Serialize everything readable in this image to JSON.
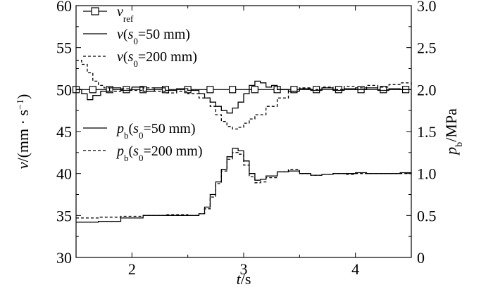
{
  "chart_data": {
    "type": "line",
    "xlabel": {
      "var": "t",
      "unit": "/s"
    },
    "ylabel_left": {
      "var": "v",
      "unit": "/(mm · s",
      "sup": "−1",
      "close": ")"
    },
    "ylabel_right": {
      "var": "p",
      "sub": "b",
      "unit": "/MPa"
    },
    "xlim": [
      1.5,
      4.5
    ],
    "ylim_left": [
      30,
      60
    ],
    "ylim_right": [
      0,
      3.0
    ],
    "x_ticks": [
      "2",
      "3",
      "4"
    ],
    "y_left_ticks": [
      "30",
      "35",
      "40",
      "45",
      "50",
      "55",
      "60"
    ],
    "y_right_ticks": [
      "0",
      "0.5",
      "1.0",
      "1.5",
      "2.0",
      "2.5",
      "3.0"
    ],
    "legend": [
      {
        "var": "v",
        "sub": "ref",
        "rest": "",
        "style": "square-marker"
      },
      {
        "var": "v",
        "sub": "",
        "rest": "(s",
        "sub2": "0",
        "tail": "=50 mm)",
        "style": "solid"
      },
      {
        "var": "v",
        "sub": "",
        "rest": "(s",
        "sub2": "0",
        "tail": "=200 mm)",
        "style": "dashed"
      },
      {
        "var": "p",
        "sub": "b",
        "rest": "(s",
        "sub2": "0",
        "tail": "=50 mm)",
        "style": "solid"
      },
      {
        "var": "p",
        "sub": "b",
        "rest": "(s",
        "sub2": "0",
        "tail": "=200 mm)",
        "style": "dashed"
      }
    ],
    "series": [
      {
        "name": "v_ref",
        "axis": "left",
        "style": "square-marker",
        "x": [
          1.5,
          1.65,
          1.8,
          1.95,
          2.1,
          2.3,
          2.5,
          2.7,
          2.9,
          3.1,
          3.3,
          3.45,
          3.65,
          3.85,
          4.05,
          4.25,
          4.45
        ],
        "y": [
          50,
          50,
          50,
          50,
          50,
          50,
          50,
          50,
          50,
          50,
          50,
          50,
          50,
          50,
          50,
          50,
          50
        ]
      },
      {
        "name": "v(s0=50 mm)",
        "axis": "left",
        "style": "solid",
        "x": [
          1.5,
          1.55,
          1.6,
          1.65,
          1.72,
          1.8,
          1.9,
          2.0,
          2.1,
          2.2,
          2.3,
          2.4,
          2.5,
          2.6,
          2.65,
          2.7,
          2.75,
          2.8,
          2.85,
          2.9,
          2.95,
          3.0,
          3.05,
          3.1,
          3.15,
          3.2,
          3.25,
          3.3,
          3.4,
          3.5,
          3.6,
          3.7,
          3.8,
          3.9,
          4.0,
          4.1,
          4.2,
          4.3,
          4.4,
          4.5
        ],
        "y": [
          50,
          49.5,
          48.8,
          49.3,
          49.8,
          50.2,
          49.9,
          50.3,
          49.8,
          50.2,
          49.9,
          50.1,
          49.9,
          49.5,
          49.0,
          48.5,
          48.0,
          47.5,
          47.2,
          47.8,
          48.5,
          49.5,
          50.5,
          51.0,
          50.8,
          50.3,
          50.5,
          50.0,
          49.8,
          50.1,
          49.9,
          50.2,
          49.9,
          50.1,
          50.0,
          50.2,
          49.9,
          50.1,
          50.0,
          50.0
        ]
      },
      {
        "name": "v(s0=200 mm)",
        "axis": "left",
        "style": "dashed",
        "x": [
          1.5,
          1.55,
          1.6,
          1.65,
          1.7,
          1.75,
          1.8,
          1.9,
          2.0,
          2.1,
          2.2,
          2.3,
          2.4,
          2.5,
          2.6,
          2.7,
          2.75,
          2.8,
          2.85,
          2.9,
          2.95,
          3.0,
          3.05,
          3.1,
          3.2,
          3.3,
          3.4,
          3.5,
          3.6,
          3.7,
          3.8,
          3.9,
          4.0,
          4.1,
          4.2,
          4.3,
          4.4,
          4.5
        ],
        "y": [
          53.5,
          53.0,
          52.0,
          51.0,
          50.5,
          50.2,
          49.8,
          50.1,
          49.9,
          50.2,
          49.8,
          49.6,
          49.8,
          49.5,
          49.0,
          48.0,
          47.0,
          46.2,
          45.6,
          45.3,
          45.5,
          46.0,
          46.5,
          47.0,
          48.0,
          49.0,
          49.8,
          50.2,
          50.0,
          50.3,
          50.0,
          50.4,
          50.2,
          50.5,
          50.3,
          50.6,
          50.8,
          50.5
        ]
      },
      {
        "name": "pb(s0=50 mm)",
        "axis": "right",
        "style": "solid",
        "x": [
          1.5,
          1.7,
          1.9,
          2.1,
          2.3,
          2.5,
          2.6,
          2.65,
          2.7,
          2.75,
          2.8,
          2.85,
          2.9,
          2.95,
          3.0,
          3.05,
          3.1,
          3.15,
          3.2,
          3.3,
          3.4,
          3.5,
          3.6,
          3.7,
          3.8,
          3.9,
          4.0,
          4.1,
          4.2,
          4.3,
          4.4,
          4.5
        ],
        "y": [
          0.42,
          0.43,
          0.47,
          0.5,
          0.5,
          0.5,
          0.52,
          0.6,
          0.75,
          0.9,
          1.05,
          1.2,
          1.3,
          1.27,
          1.15,
          1.0,
          0.92,
          0.93,
          0.97,
          1.02,
          1.03,
          1.0,
          0.98,
          0.99,
          1.0,
          1.0,
          1.01,
          1.0,
          1.0,
          1.0,
          1.01,
          1.0
        ]
      },
      {
        "name": "pb(s0=200 mm)",
        "axis": "right",
        "style": "dashed",
        "x": [
          1.5,
          1.7,
          1.9,
          2.1,
          2.3,
          2.5,
          2.6,
          2.65,
          2.7,
          2.75,
          2.8,
          2.85,
          2.9,
          2.95,
          3.0,
          3.05,
          3.1,
          3.15,
          3.2,
          3.3,
          3.4,
          3.5,
          3.6,
          3.7,
          3.8,
          3.9,
          4.0,
          4.1,
          4.2,
          4.3,
          4.4,
          4.5
        ],
        "y": [
          0.47,
          0.48,
          0.49,
          0.5,
          0.51,
          0.5,
          0.52,
          0.58,
          0.72,
          0.88,
          1.03,
          1.17,
          1.25,
          1.23,
          1.1,
          0.96,
          0.89,
          0.9,
          0.95,
          1.02,
          1.05,
          1.0,
          0.98,
          0.99,
          1.0,
          0.99,
          1.0,
          1.0,
          1.0,
          1.0,
          1.0,
          1.0
        ]
      }
    ]
  }
}
